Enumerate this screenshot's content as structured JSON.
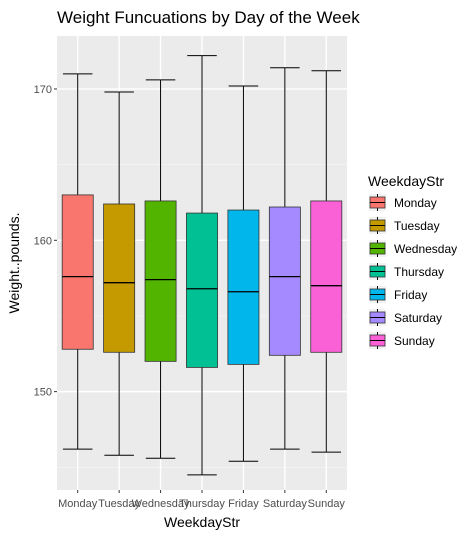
{
  "chart_data": {
    "type": "box",
    "title": "Weight Funcuations by Day of the Week",
    "xlabel": "WeekdayStr",
    "ylabel": "Weight..pounds.",
    "ylim": [
      143.5,
      173.5
    ],
    "yticks": [
      150,
      160,
      170
    ],
    "grid": true,
    "legend": {
      "title": "WeekdayStr",
      "position": "right"
    },
    "categories": [
      "Monday",
      "Tuesday",
      "Wednesday",
      "Thursday",
      "Friday",
      "Saturday",
      "Sunday"
    ],
    "colors": [
      "#F8766D",
      "#C49A00",
      "#53B400",
      "#00C094",
      "#00B6EB",
      "#A58AFF",
      "#FB61D7"
    ],
    "boxes": [
      {
        "name": "Monday",
        "min": 146.2,
        "q1": 152.8,
        "median": 157.6,
        "q3": 163.0,
        "max": 171.0
      },
      {
        "name": "Tuesday",
        "min": 145.8,
        "q1": 152.6,
        "median": 157.2,
        "q3": 162.4,
        "max": 169.8
      },
      {
        "name": "Wednesday",
        "min": 145.6,
        "q1": 152.0,
        "median": 157.4,
        "q3": 162.6,
        "max": 170.6
      },
      {
        "name": "Thursday",
        "min": 144.5,
        "q1": 151.6,
        "median": 156.8,
        "q3": 161.8,
        "max": 172.2
      },
      {
        "name": "Friday",
        "min": 145.4,
        "q1": 151.8,
        "median": 156.6,
        "q3": 162.0,
        "max": 170.2
      },
      {
        "name": "Saturday",
        "min": 146.2,
        "q1": 152.4,
        "median": 157.6,
        "q3": 162.2,
        "max": 171.4
      },
      {
        "name": "Sunday",
        "min": 146.0,
        "q1": 152.6,
        "median": 157.0,
        "q3": 162.6,
        "max": 171.2
      }
    ]
  }
}
